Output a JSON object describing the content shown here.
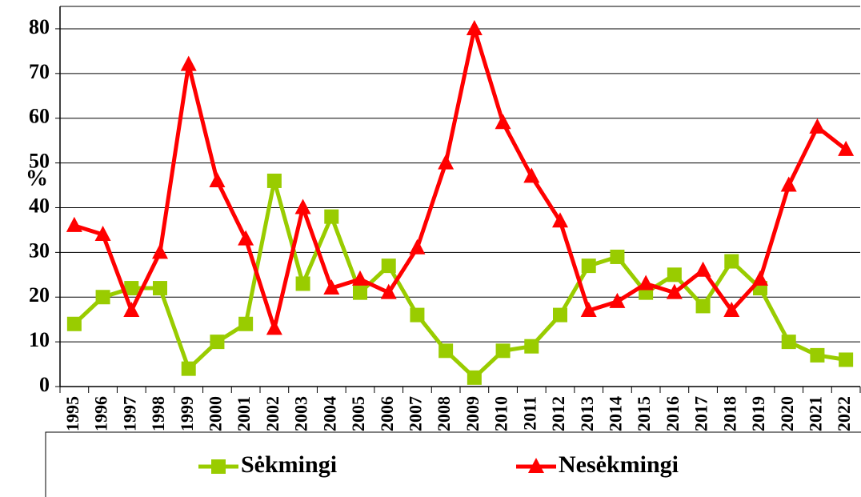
{
  "chart_data": {
    "type": "line",
    "y_label": "%",
    "categories": [
      "1995",
      "1996",
      "1997",
      "1998",
      "1999",
      "2000",
      "2001",
      "2002",
      "2003",
      "2004",
      "2005",
      "2006",
      "2007",
      "2008",
      "2009",
      "2010",
      "2011",
      "2012",
      "2013",
      "2014",
      "2015",
      "2016",
      "2017",
      "2018",
      "2019",
      "2020",
      "2021",
      "2022"
    ],
    "series": [
      {
        "name": "Sėkmingi",
        "color": "#99cc00",
        "marker": "square",
        "values": [
          14,
          20,
          22,
          22,
          4,
          10,
          14,
          46,
          23,
          38,
          21,
          27,
          16,
          8,
          2,
          8,
          9,
          16,
          27,
          29,
          21,
          25,
          18,
          28,
          22,
          10,
          7,
          6
        ]
      },
      {
        "name": "Nesėkmingi",
        "color": "#ff0000",
        "marker": "triangle",
        "values": [
          36,
          34,
          17,
          30,
          72,
          46,
          33,
          13,
          40,
          22,
          24,
          21,
          31,
          50,
          80,
          59,
          47,
          37,
          17,
          19,
          23,
          21,
          26,
          17,
          24,
          45,
          58,
          53
        ]
      }
    ],
    "ylim": [
      0,
      85
    ],
    "yticks": [
      0,
      10,
      20,
      30,
      40,
      50,
      60,
      70,
      80
    ],
    "grid": true,
    "legend": "bottom"
  }
}
